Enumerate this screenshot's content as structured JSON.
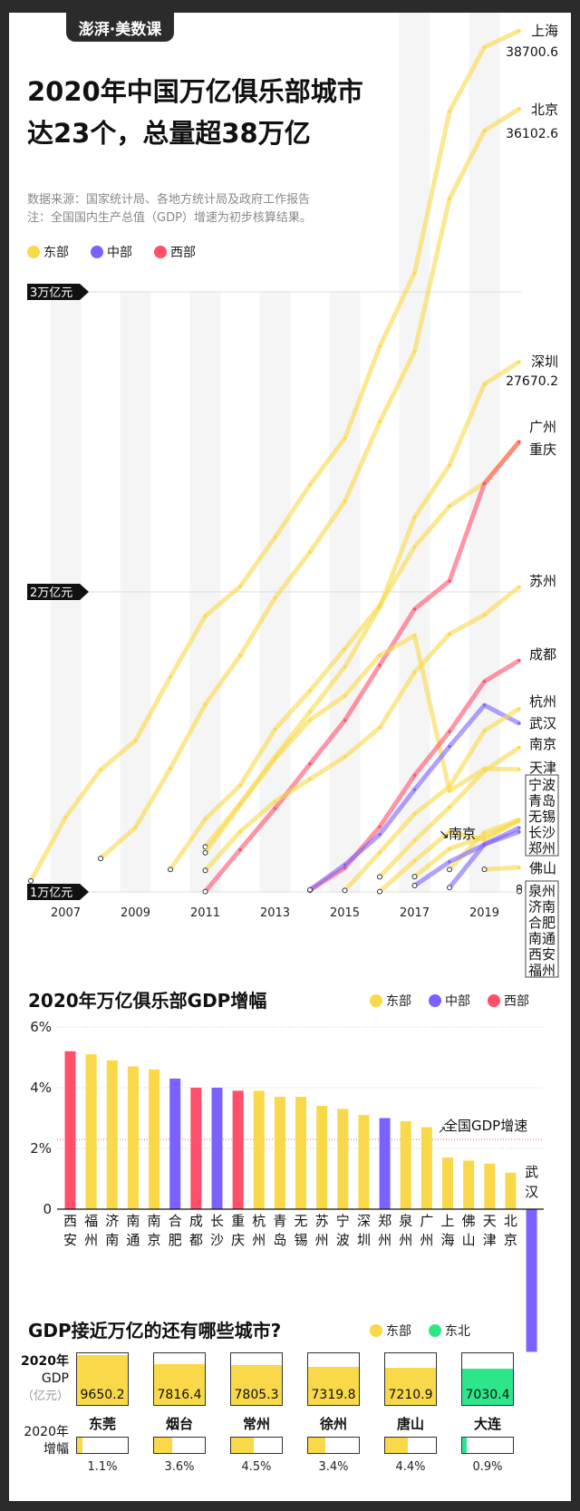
{
  "brand": "澎湃·美数课",
  "title_line1": "2020年中国万亿俱乐部城市",
  "title_line2": "达23个，总量超38万亿",
  "source": "数据来源：国家统计局、各地方统计局及政府工作报告",
  "note": "注：全国国内生产总值（GDP）增速为初步核算结果。",
  "legend": [
    {
      "label": "东部",
      "color": "#f9d849"
    },
    {
      "label": "中部",
      "color": "#7b61ff"
    },
    {
      "label": "西部",
      "color": "#ff4f6b"
    }
  ],
  "chart_data": [
    {
      "type": "line",
      "ylabel_ticks": [
        "1万亿元",
        "2万亿元",
        "3万亿元"
      ],
      "yticks": [
        10000,
        20000,
        30000
      ],
      "x_ticks": [
        "2007",
        "2009",
        "2011",
        "2013",
        "2015",
        "2017",
        "2019"
      ],
      "xlim": [
        2006,
        2020
      ],
      "ylim": [
        10000,
        39000
      ],
      "unit": "亿元",
      "series": [
        {
          "name": "上海",
          "region": "东部",
          "label_value": "38700.6",
          "x": [
            2006,
            2007,
            2008,
            2009,
            2010,
            2011,
            2012,
            2013,
            2014,
            2015,
            2016,
            2017,
            2018,
            2019,
            2020
          ],
          "values": [
            10366,
            12494,
            14070,
            15046,
            17166,
            19196,
            20182,
            21818,
            23568,
            25123,
            28179,
            30633,
            36012,
            38155,
            38700.6
          ]
        },
        {
          "name": "北京",
          "region": "东部",
          "label_value": "36102.6",
          "x": [
            2008,
            2009,
            2010,
            2011,
            2012,
            2013,
            2014,
            2015,
            2016,
            2017,
            2018,
            2019,
            2020
          ],
          "values": [
            11115,
            12153,
            14114,
            16252,
            17879,
            19800,
            21331,
            23015,
            25669,
            28015,
            33106,
            35371,
            36102.6
          ]
        },
        {
          "name": "深圳",
          "region": "东部",
          "label_value": "27670.2",
          "x": [
            2011,
            2012,
            2013,
            2014,
            2015,
            2016,
            2017,
            2018,
            2019,
            2020
          ],
          "values": [
            11502,
            12950,
            14500,
            16002,
            17503,
            19493,
            22490,
            24222,
            26927,
            27670.2
          ]
        },
        {
          "name": "广州",
          "region": "东部",
          "x": [
            2010,
            2011,
            2012,
            2013,
            2014,
            2015,
            2016,
            2017,
            2018,
            2019,
            2020
          ],
          "values": [
            10748,
            12423,
            13551,
            15420,
            16707,
            18100,
            19547,
            21503,
            22859,
            23629,
            25019
          ]
        },
        {
          "name": "重庆",
          "region": "西部",
          "x": [
            2011,
            2012,
            2013,
            2014,
            2015,
            2016,
            2017,
            2018,
            2019,
            2020
          ],
          "values": [
            10011,
            11410,
            12783,
            14263,
            15717,
            17559,
            19425,
            20363,
            23606,
            25002.8
          ]
        },
        {
          "name": "苏州",
          "region": "东部",
          "x": [
            2011,
            2012,
            2013,
            2014,
            2015,
            2016,
            2017,
            2018,
            2019,
            2020
          ],
          "values": [
            10717,
            12012,
            13016,
            13761,
            14504,
            15475,
            17320,
            18597,
            19236,
            20170.5
          ]
        },
        {
          "name": "天津",
          "region": "东部",
          "x": [
            2011,
            2012,
            2013,
            2014,
            2015,
            2016,
            2017,
            2018,
            2019,
            2020
          ],
          "values": [
            11307,
            12894,
            14442,
            15727,
            16538,
            17885,
            18549,
            13363,
            14104,
            14083.7
          ]
        },
        {
          "name": "成都",
          "region": "西部",
          "x": [
            2014,
            2015,
            2016,
            2017,
            2018,
            2019,
            2020
          ],
          "values": [
            10057,
            10801,
            12170,
            13889,
            15343,
            17013,
            17716.7
          ]
        },
        {
          "name": "武汉",
          "region": "中部",
          "x": [
            2014,
            2015,
            2016,
            2017,
            2018,
            2019,
            2020
          ],
          "values": [
            10069,
            10906,
            11913,
            13410,
            14847,
            16223,
            15616.1
          ]
        },
        {
          "name": "杭州",
          "region": "东部",
          "x": [
            2015,
            2016,
            2017,
            2018,
            2019,
            2020
          ],
          "values": [
            10050,
            11314,
            12603,
            13509,
            15373,
            16106
          ]
        },
        {
          "name": "南京",
          "region": "东部",
          "x": [
            2016,
            2017,
            2018,
            2019,
            2020
          ],
          "values": [
            10503,
            11715,
            12820,
            14030,
            14817.9
          ]
        },
        {
          "name": "青岛",
          "region": "东部",
          "x": [
            2016,
            2017,
            2018,
            2019,
            2020
          ],
          "values": [
            10011,
            11037,
            12002,
            11741,
            12400.6
          ]
        },
        {
          "name": "无锡",
          "region": "东部",
          "x": [
            2017,
            2018,
            2019,
            2020
          ],
          "values": [
            10511,
            11439,
            11852,
            12370
          ]
        },
        {
          "name": "宁波",
          "region": "东部",
          "x": [
            2018,
            2019,
            2020
          ],
          "values": [
            10746,
            11985,
            12408.7
          ]
        },
        {
          "name": "长沙",
          "region": "中部",
          "x": [
            2017,
            2018,
            2019,
            2020
          ],
          "values": [
            10210,
            11003,
            11574,
            12142.5
          ]
        },
        {
          "name": "郑州",
          "region": "中部",
          "x": [
            2018,
            2019,
            2020
          ],
          "values": [
            10143,
            11590,
            12003
          ]
        },
        {
          "name": "佛山",
          "region": "东部",
          "x": [
            2019,
            2020
          ],
          "values": [
            10751,
            10816
          ]
        },
        {
          "name": "泉州",
          "region": "东部",
          "x": [
            2020
          ],
          "values": [
            10158.7
          ]
        },
        {
          "name": "济南",
          "region": "东部",
          "x": [
            2020
          ],
          "values": [
            10140.9
          ]
        },
        {
          "name": "合肥",
          "region": "中部",
          "x": [
            2020
          ],
          "values": [
            10045.7
          ]
        },
        {
          "name": "南通",
          "region": "东部",
          "x": [
            2020
          ],
          "values": [
            10036.3
          ]
        },
        {
          "name": "西安",
          "region": "西部",
          "x": [
            2020
          ],
          "values": [
            10020.4
          ]
        },
        {
          "name": "福州",
          "region": "东部",
          "x": [
            2020
          ],
          "values": [
            10020
          ]
        }
      ],
      "annotation": "南京"
    },
    {
      "type": "bar",
      "title": "2020年万亿俱乐部GDP增幅",
      "yticks": [
        "0",
        "2%",
        "4%",
        "6%"
      ],
      "ylim": [
        -4.7,
        6
      ],
      "categories": [
        "西安",
        "福州",
        "济南",
        "南通",
        "南京",
        "合肥",
        "成都",
        "长沙",
        "重庆",
        "杭州",
        "青岛",
        "无锡",
        "苏州",
        "宁波",
        "深圳",
        "郑州",
        "泉州",
        "广州",
        "上海",
        "佛山",
        "天津",
        "北京",
        "武汉"
      ],
      "regions": [
        "西部",
        "东部",
        "东部",
        "东部",
        "东部",
        "中部",
        "西部",
        "中部",
        "西部",
        "东部",
        "东部",
        "东部",
        "东部",
        "东部",
        "东部",
        "中部",
        "东部",
        "东部",
        "东部",
        "东部",
        "东部",
        "东部",
        "中部"
      ],
      "values": [
        5.2,
        5.1,
        4.9,
        4.7,
        4.6,
        4.3,
        4.0,
        4.0,
        3.9,
        3.9,
        3.7,
        3.7,
        3.4,
        3.3,
        3.1,
        3.0,
        2.9,
        2.7,
        1.7,
        1.6,
        1.5,
        1.2,
        -4.7
      ],
      "reference": {
        "label": "全国GDP增速",
        "value": 2.3
      }
    }
  ],
  "near": {
    "title": "GDP接近万亿的还有哪些城市?",
    "legend": [
      {
        "label": "东部",
        "color": "#f9d849"
      },
      {
        "label": "东北",
        "color": "#2ee68a"
      }
    ],
    "gdp_label": [
      "2020年",
      "GDP",
      "（亿元）"
    ],
    "growth_label": [
      "2020年",
      "增幅"
    ],
    "cities": [
      {
        "name": "东莞",
        "gdp": "9650.2",
        "growth": "1.1%",
        "g": 1.1,
        "v": 9650.2,
        "color": "#f9d849"
      },
      {
        "name": "烟台",
        "gdp": "7816.4",
        "growth": "3.6%",
        "g": 3.6,
        "v": 7816.4,
        "color": "#f9d849"
      },
      {
        "name": "常州",
        "gdp": "7805.3",
        "growth": "4.5%",
        "g": 4.5,
        "v": 7805.3,
        "color": "#f9d849"
      },
      {
        "name": "徐州",
        "gdp": "7319.8",
        "growth": "3.4%",
        "g": 3.4,
        "v": 7319.8,
        "color": "#f9d849"
      },
      {
        "name": "唐山",
        "gdp": "7210.9",
        "growth": "4.4%",
        "g": 4.4,
        "v": 7210.9,
        "color": "#f9d849"
      },
      {
        "name": "大连",
        "gdp": "7030.4",
        "growth": "0.9%",
        "g": 0.9,
        "v": 7030.4,
        "color": "#2ee68a"
      }
    ]
  }
}
